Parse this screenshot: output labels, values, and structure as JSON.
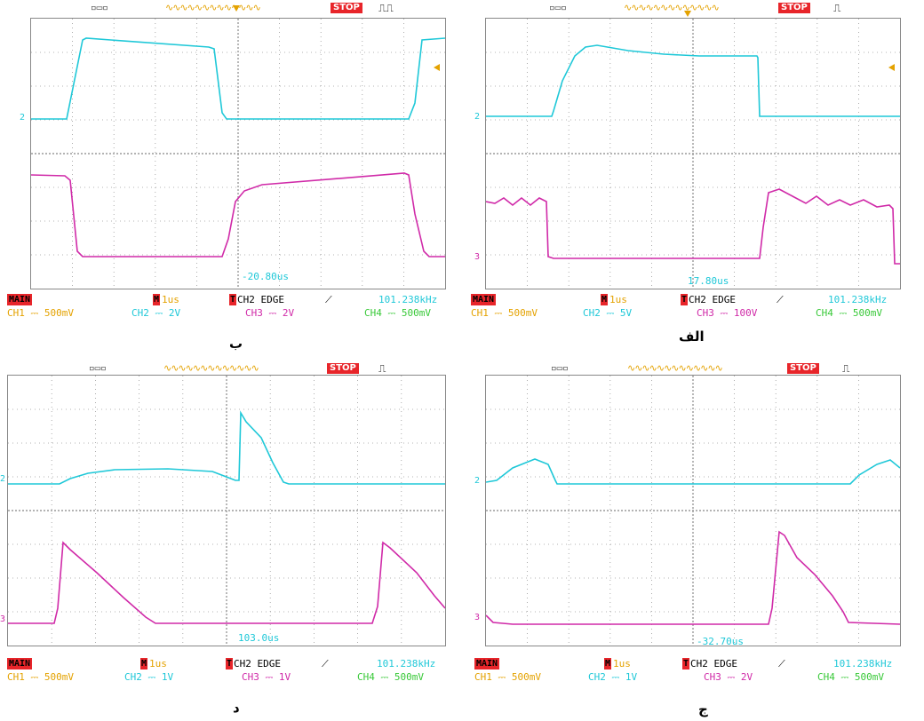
{
  "panels": [
    {
      "id": "b",
      "caption": "ب",
      "stop_label": "STOP",
      "main_label": "MAIN",
      "m_label": "M",
      "timebase": "1us",
      "t_label": "T",
      "trigger": "CH2  EDGE",
      "frequency": "101.238kHz",
      "ch1": "CH1 ⎓ 500mV",
      "ch2": "CH2 ⎓ 2V",
      "ch3": "CH3 ⎓ 2V",
      "ch4": "CH4 ⎓ 500mV",
      "time_offset": "-20.80us",
      "ch_a_marker": "2",
      "ch_b_marker": ""
    },
    {
      "id": "alef",
      "caption": "الف",
      "stop_label": "STOP",
      "main_label": "MAIN",
      "m_label": "M",
      "timebase": "1us",
      "t_label": "T",
      "trigger": "CH2  EDGE",
      "frequency": "101.238kHz",
      "ch1": "CH1 ⎓ 500mV",
      "ch2": "CH2 ⎓ 5V",
      "ch3": "CH3 ⎓ 100V",
      "ch4": "CH4 ⎓ 500mV",
      "time_offset": "17.80us",
      "ch_a_marker": "2",
      "ch_b_marker": "3"
    },
    {
      "id": "dal",
      "caption": "د",
      "stop_label": "STOP",
      "main_label": "MAIN",
      "m_label": "M",
      "timebase": "1us",
      "t_label": "T",
      "trigger": "CH2  EDGE",
      "frequency": "101.238kHz",
      "ch1": "CH1 ⎓ 500mV",
      "ch2": "CH2 ⎓ 1V",
      "ch3": "CH3 ⎓ 1V",
      "ch4": "CH4 ⎓ 500mV",
      "time_offset": "103.0us",
      "ch_a_marker": "2",
      "ch_b_marker": "3"
    },
    {
      "id": "jim",
      "caption": "ج",
      "stop_label": "STOP",
      "main_label": "MAIN",
      "m_label": "M",
      "timebase": "1us",
      "t_label": "T",
      "trigger": "CH2  EDGE",
      "frequency": "101.238kHz",
      "ch1": "CH1 ⎓ 500mV",
      "ch2": "CH2 ⎓ 1V",
      "ch3": "CH3 ⎓ 2V",
      "ch4": "CH4 ⎓ 500mV",
      "time_offset": "-32.70us",
      "ch_a_marker": "2",
      "ch_b_marker": "3"
    }
  ],
  "colors": {
    "cyan": "#1fc8d8",
    "magenta": "#d02aa8",
    "yellow": "#e4a200",
    "green": "#39c939",
    "red": "#e8252a"
  }
}
